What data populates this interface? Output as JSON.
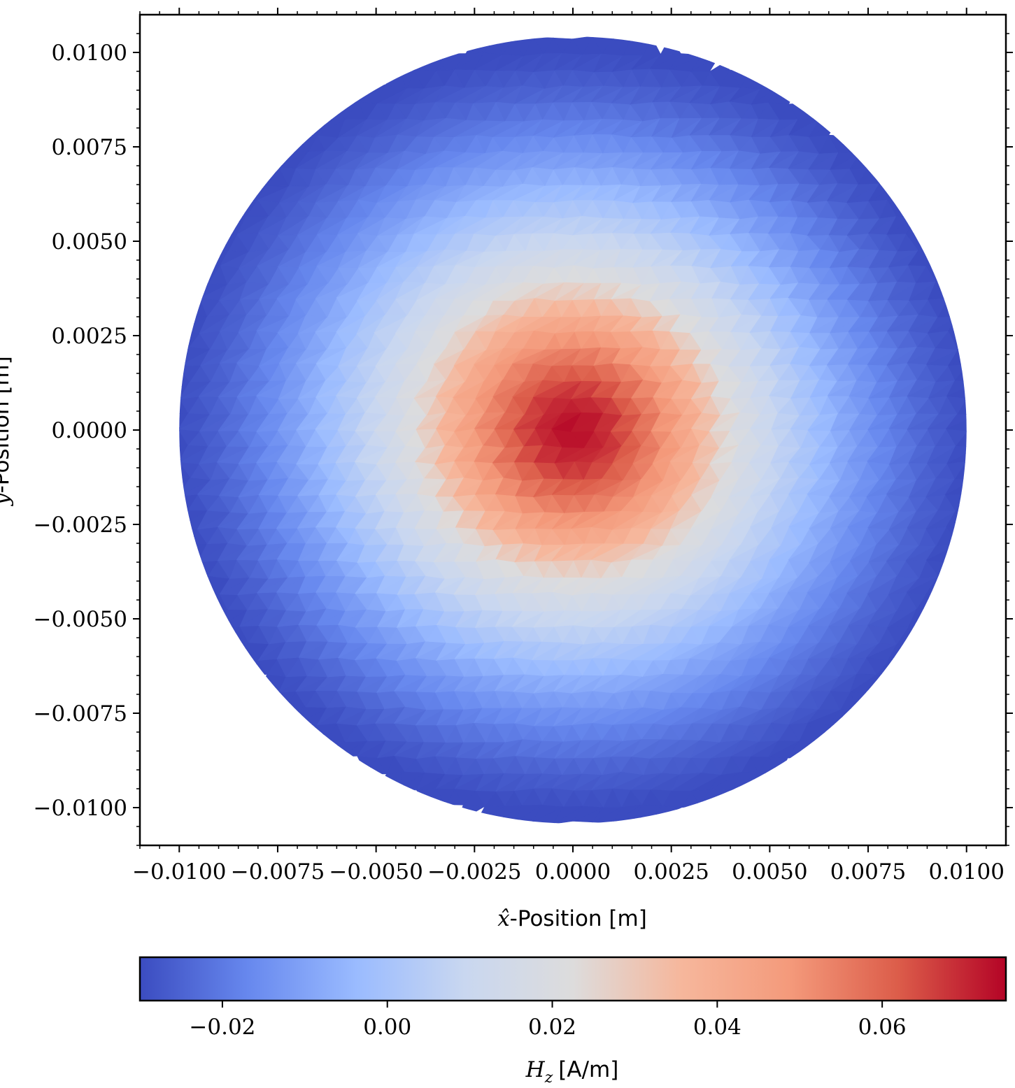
{
  "chart_data": [
    {
      "type": "heatmap",
      "title": "",
      "xlabel_math": "x̂",
      "xlabel_text": "-Position [m]",
      "ylabel_math": "ŷ",
      "ylabel_text": "-Position [m]",
      "xlim": [
        -0.011,
        0.011
      ],
      "ylim": [
        -0.011,
        0.011
      ],
      "xticks": [
        "−0.0100",
        "−0.0075",
        "−0.0050",
        "−0.0025",
        "0.0000",
        "0.0025",
        "0.0050",
        "0.0075",
        "0.0100"
      ],
      "yticks": [
        "0.0100",
        "0.0075",
        "0.0050",
        "0.0025",
        "0.0000",
        "−0.0025",
        "−0.0050",
        "−0.0075",
        "−0.0100"
      ],
      "grid": false,
      "colormap": "coolwarm",
      "domain_shape": "disk",
      "disk_radius": 0.01,
      "disk_center": [
        0.0,
        0.0
      ],
      "field_min": -0.03,
      "field_max": 0.075,
      "field_peak_location": [
        0.0,
        0.0
      ],
      "field_profile": [
        {
          "r": 0.0,
          "value": 0.075
        },
        {
          "r": 0.001,
          "value": 0.068
        },
        {
          "r": 0.002,
          "value": 0.055
        },
        {
          "r": 0.003,
          "value": 0.04
        },
        {
          "r": 0.004,
          "value": 0.022
        },
        {
          "r": 0.005,
          "value": 0.01
        },
        {
          "r": 0.006,
          "value": 0.0
        },
        {
          "r": 0.007,
          "value": -0.01
        },
        {
          "r": 0.008,
          "value": -0.018
        },
        {
          "r": 0.009,
          "value": -0.025
        },
        {
          "r": 0.01,
          "value": -0.03
        }
      ]
    },
    {
      "type": "colorbar",
      "label_math": "H_z",
      "label_text": "[A/m]",
      "range": [
        -0.03,
        0.075
      ],
      "ticks": [
        -0.02,
        0.0,
        0.02,
        0.04,
        0.06
      ],
      "tick_labels": [
        "−0.02",
        "0.00",
        "0.02",
        "0.04",
        "0.06"
      ],
      "colors": [
        "#3b4cc0",
        "#6788ee",
        "#9abbff",
        "#c9d7f0",
        "#dddcdc",
        "#f6b79c",
        "#f49a7b",
        "#dc5d4a",
        "#b40426"
      ]
    }
  ]
}
